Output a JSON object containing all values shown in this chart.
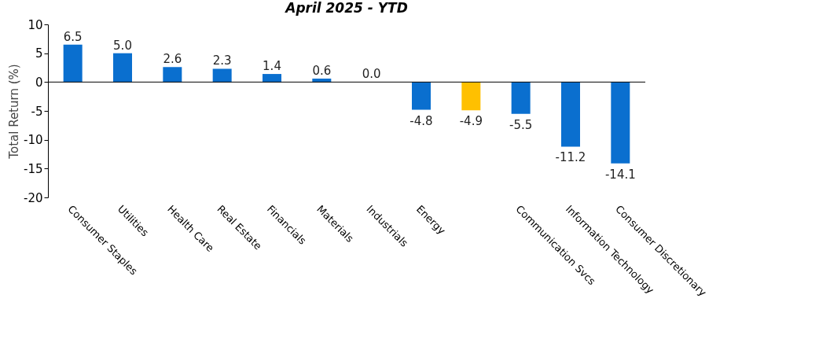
{
  "chart_data": {
    "type": "bar",
    "title": "April 2025 - YTD",
    "ylabel": "Total Return (%)",
    "categories": [
      "Consumer Staples",
      "Utilities",
      "Health Care",
      "Real Estate",
      "Financials",
      "Materials",
      "Industrials",
      "Energy",
      null,
      "Communication Svcs",
      "Information Technology",
      "Consumer Discretionary"
    ],
    "values": [
      6.5,
      5.0,
      2.6,
      2.3,
      1.4,
      0.6,
      0.0,
      -4.8,
      -4.9,
      -5.5,
      -11.2,
      -14.1
    ],
    "value_labels": [
      "6.5",
      "5.0",
      "2.6",
      "2.3",
      "1.4",
      "0.6",
      "0.0",
      "-4.8",
      "-4.9",
      "-5.5",
      "-11.2",
      "-14.1"
    ],
    "colors": [
      "#0a6fcf",
      "#0a6fcf",
      "#0a6fcf",
      "#0a6fcf",
      "#0a6fcf",
      "#0a6fcf",
      "#0a6fcf",
      "#0a6fcf",
      "#ffc000",
      "#0a6fcf",
      "#0a6fcf",
      "#0a6fcf"
    ],
    "ylim": [
      -20,
      10
    ],
    "yticks": [
      -20,
      -15,
      -10,
      -5,
      0,
      5,
      10
    ],
    "ref_lines": [
      {
        "axis": "y",
        "value": 0,
        "color": "#000000"
      }
    ],
    "grid": false
  }
}
